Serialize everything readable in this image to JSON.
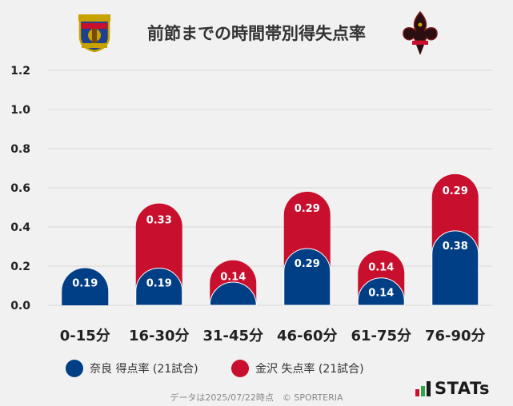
{
  "title": "前節までの時間帯別得失点率",
  "colors": {
    "nara": "#003f85",
    "kanazawa": "#c8102e",
    "grid": "#d8d8d8",
    "axis_text": "#222222"
  },
  "legend": [
    {
      "label": "奈良 得点率 (21試合)",
      "color": "#003f85"
    },
    {
      "label": "金沢 失点率 (21試合)",
      "color": "#c8102e"
    }
  ],
  "footer": "データは2025/07/22時点　© SPORTERIA",
  "logo_text": "STATs",
  "chart_data": {
    "type": "bar",
    "stacked": true,
    "categories": [
      "0-15分",
      "16-30分",
      "31-45分",
      "46-60分",
      "61-75分",
      "76-90分"
    ],
    "series": [
      {
        "name": "奈良 得点率 (21試合)",
        "values": [
          0.19,
          0.19,
          0.09,
          0.29,
          0.14,
          0.38
        ],
        "labels": [
          "0.19",
          "0.19",
          "",
          "0.29",
          "0.14",
          "0.38"
        ]
      },
      {
        "name": "金沢 失点率 (21試合)",
        "values": [
          0,
          0.33,
          0.14,
          0.29,
          0.14,
          0.29
        ],
        "labels": [
          "",
          "0.33",
          "0.14",
          "0.29",
          "0.14",
          "0.29"
        ]
      }
    ],
    "yticks": [
      "0.0",
      "0.2",
      "0.4",
      "0.6",
      "0.8",
      "1.0",
      "1.2"
    ],
    "ylim": [
      0,
      1.2
    ],
    "grid": true,
    "legend_position": "bottom"
  }
}
